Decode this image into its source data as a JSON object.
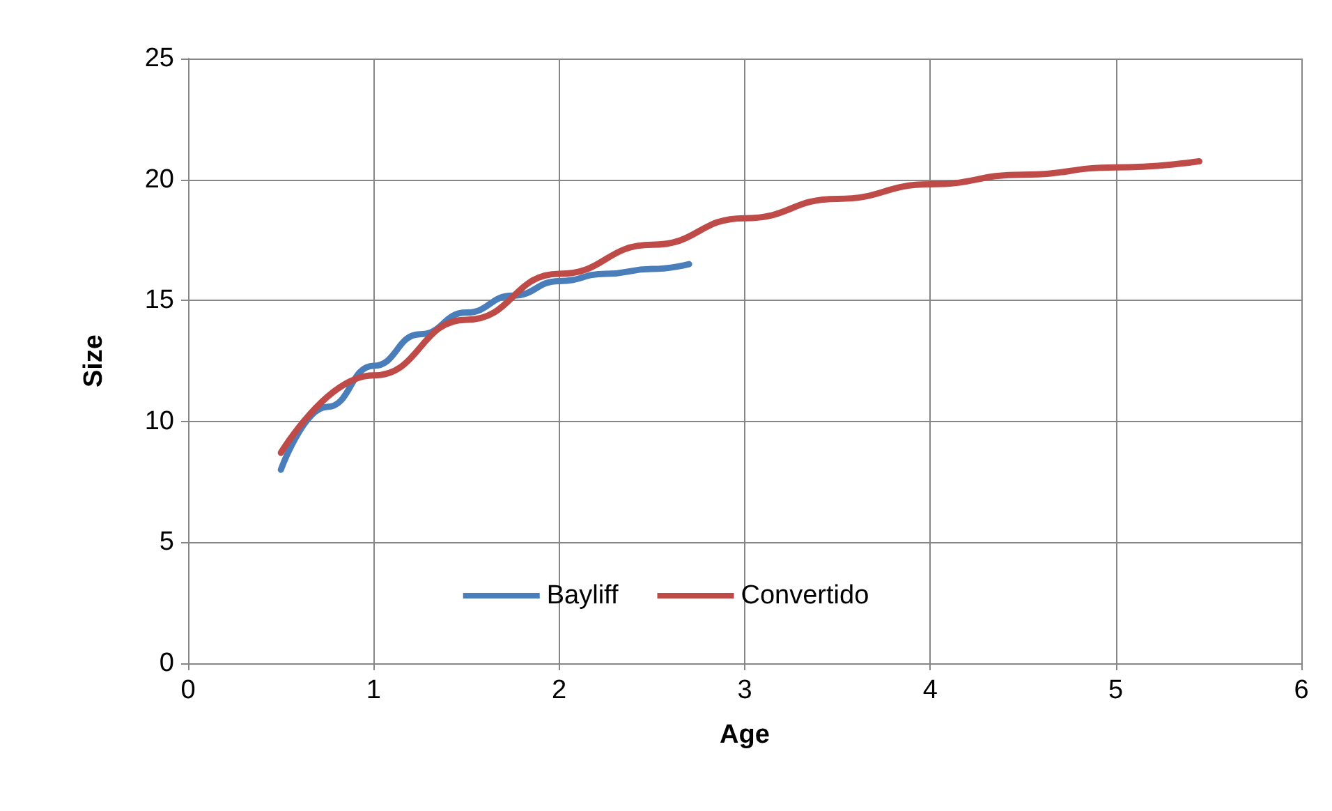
{
  "chart_data": {
    "type": "line",
    "xlabel": "Age",
    "ylabel": "Size",
    "xlim": [
      0,
      6
    ],
    "xticks": [
      0,
      1,
      2,
      3,
      4,
      5,
      6
    ],
    "ylim": [
      0,
      25
    ],
    "yticks": [
      0,
      5,
      10,
      15,
      20,
      25
    ],
    "grid": true,
    "legend": "bottom",
    "marker": "none",
    "line_style": "solid",
    "series": [
      {
        "name": "Bayliff",
        "color": "#4a7ebb",
        "x": [
          0.5,
          0.75,
          1,
          1.25,
          1.5,
          1.75,
          2,
          2.25,
          2.5,
          2.7
        ],
        "values": [
          8.0,
          10.6,
          12.3,
          13.6,
          14.5,
          15.2,
          15.8,
          16.1,
          16.3,
          16.5
        ]
      },
      {
        "name": "Convertido",
        "color": "#be4b48",
        "x": [
          0.5,
          1,
          1.5,
          2,
          2.5,
          3,
          3.5,
          4,
          4.5,
          5,
          5.45
        ],
        "values": [
          8.7,
          11.9,
          14.2,
          16.1,
          17.3,
          18.4,
          19.2,
          19.8,
          20.2,
          20.5,
          20.75
        ]
      }
    ]
  }
}
